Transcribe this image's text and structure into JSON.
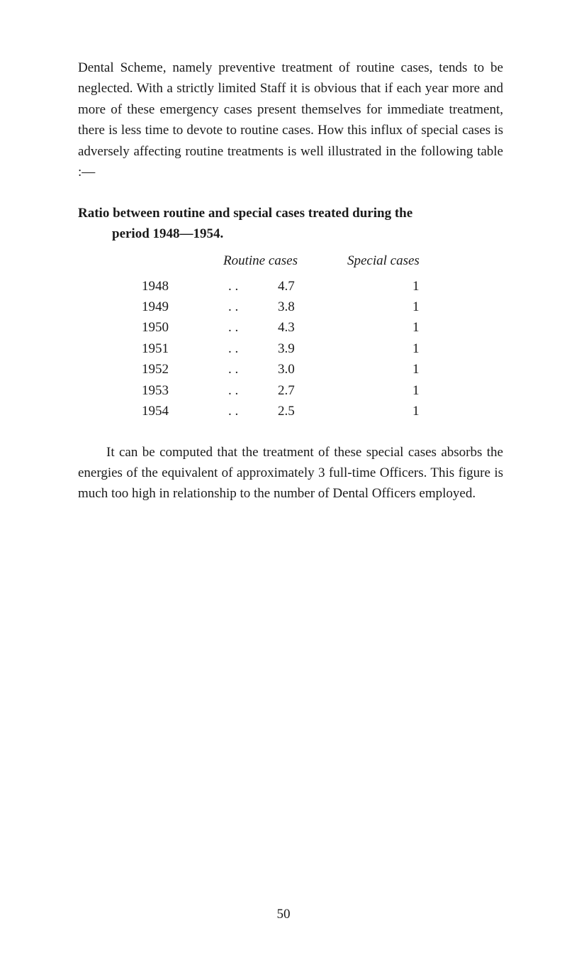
{
  "paragraphs": {
    "intro": "Dental Scheme, namely preventive treatment of routine cases, tends to be neglected. With a strictly limited Staff it is obvious that if each year more and more of these emergency cases present themselves for immediate treatment, there is less time to devote to routine cases. How this influx of special cases is adversely affecting routine treatments is well illustrated in the following table :—",
    "closing": "It can be computed that the treatment of these special cases absorbs the energies of the equivalent of approximately 3 full-time Officers. This figure is much too high in relationship to the number of Dental Officers employed."
  },
  "heading": {
    "line1": "Ratio between routine and special cases treated during the",
    "line2": "period 1948—1954."
  },
  "table": {
    "headers": {
      "routine": "Routine cases",
      "special": "Special cases"
    },
    "rows": [
      {
        "year": "1948",
        "dots": ". .",
        "routine": "4.7",
        "special": "1"
      },
      {
        "year": "1949",
        "dots": ". .",
        "routine": "3.8",
        "special": "1"
      },
      {
        "year": "1950",
        "dots": ". .",
        "routine": "4.3",
        "special": "1"
      },
      {
        "year": "1951",
        "dots": ". .",
        "routine": "3.9",
        "special": "1"
      },
      {
        "year": "1952",
        "dots": ". .",
        "routine": "3.0",
        "special": "1"
      },
      {
        "year": "1953",
        "dots": ". .",
        "routine": "2.7",
        "special": "1"
      },
      {
        "year": "1954",
        "dots": ". .",
        "routine": "2.5",
        "special": "1"
      }
    ]
  },
  "pageNumber": "50"
}
